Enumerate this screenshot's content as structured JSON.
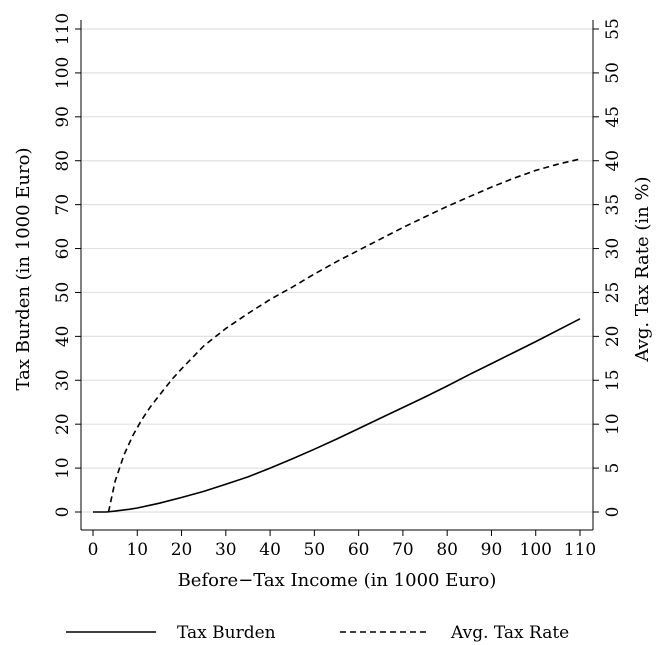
{
  "chart_data": {
    "type": "line",
    "xlabel": "Before−Tax Income (in 1000 Euro)",
    "ylabel": "Tax Burden (in 1000 Euro)",
    "y2label": "Avg. Tax Rate (in %)",
    "xlim": [
      0,
      110
    ],
    "ylim": [
      0,
      110
    ],
    "y2lim": [
      0,
      55
    ],
    "xticks": [
      "0",
      "10",
      "20",
      "30",
      "40",
      "50",
      "60",
      "70",
      "80",
      "90",
      "100",
      "110"
    ],
    "yticks": [
      "0",
      "10",
      "20",
      "30",
      "40",
      "50",
      "60",
      "70",
      "80",
      "90",
      "100",
      "110"
    ],
    "y2ticks": [
      "0",
      "5",
      "10",
      "15",
      "20",
      "25",
      "30",
      "35",
      "40",
      "45",
      "50",
      "55"
    ],
    "grid": true,
    "legend_position": "bottom",
    "series": [
      {
        "name": "Tax Burden",
        "axis": "left",
        "style": "solid",
        "color": "#000000",
        "x": [
          0,
          3,
          5,
          8,
          10,
          15,
          20,
          25,
          30,
          35,
          40,
          45,
          50,
          55,
          60,
          65,
          70,
          75,
          80,
          85,
          90,
          95,
          100,
          105,
          110
        ],
        "y": [
          0,
          0,
          0.2,
          0.6,
          0.9,
          2.0,
          3.3,
          4.7,
          6.3,
          8.0,
          10.0,
          12.1,
          14.3,
          16.6,
          19.0,
          21.4,
          23.8,
          26.2,
          28.7,
          31.3,
          33.8,
          36.3,
          38.8,
          41.4,
          44.0
        ]
      },
      {
        "name": "Avg. Tax Rate",
        "axis": "right",
        "style": "dashed",
        "color": "#000000",
        "x": [
          3.5,
          5,
          7,
          9,
          11,
          13,
          15,
          18,
          20,
          25,
          30,
          35,
          40,
          45,
          50,
          55,
          60,
          65,
          70,
          75,
          80,
          85,
          90,
          95,
          100,
          105,
          110
        ],
        "y": [
          0,
          3.5,
          6.5,
          8.7,
          10.5,
          12.0,
          13.3,
          15.2,
          16.3,
          18.9,
          20.9,
          22.6,
          24.2,
          25.6,
          27.1,
          28.5,
          29.8,
          31.1,
          32.4,
          33.6,
          34.8,
          35.9,
          37.0,
          38.0,
          38.9,
          39.6,
          40.2
        ]
      }
    ]
  }
}
